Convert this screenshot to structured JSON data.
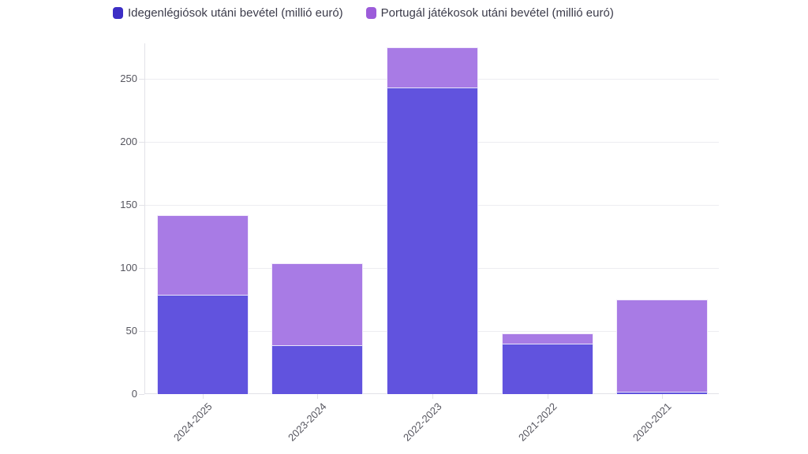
{
  "chart_data": {
    "type": "bar",
    "stacked": true,
    "title": "",
    "categories": [
      "2024-2025",
      "2023-2024",
      "2022-2023",
      "2021-2022",
      "2020-2021"
    ],
    "series": [
      {
        "name": "Idegenlégiósok utáni bevétel (millió euró)",
        "values": [
          79,
          39,
          243,
          40,
          2
        ],
        "bar_color": "#6153de",
        "legend_color": "#3c2ec5"
      },
      {
        "name": "Portugál játékosok utáni bevétel (millió euró)",
        "values": [
          63,
          65,
          32,
          8,
          73
        ],
        "bar_color": "#a87be5",
        "legend_color": "#9c5cda"
      }
    ],
    "ylim": [
      0,
      278
    ],
    "yticks": [
      0,
      50,
      100,
      150,
      200,
      250
    ],
    "grid": true,
    "legend_position": "top",
    "x_tick_rotation": -45
  }
}
